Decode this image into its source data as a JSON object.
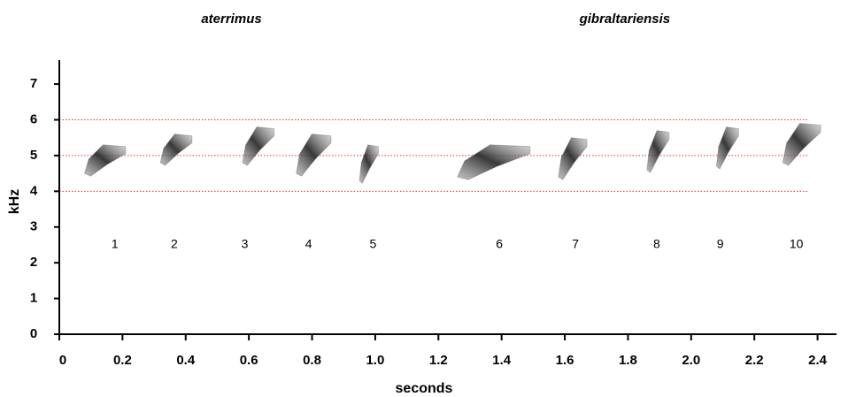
{
  "chart_data": {
    "type": "spectrogram",
    "xlabel": "seconds",
    "ylabel": "kHz",
    "xlim": [
      0,
      2.46
    ],
    "ylim": [
      0,
      7.67
    ],
    "xticks": [
      0,
      0.2,
      0.4,
      0.6,
      0.8,
      {
        "value": 1.0,
        "label": "1.0"
      },
      1.2,
      1.4,
      1.6,
      1.8,
      {
        "value": 2.0,
        "label": "2.0"
      },
      2.2,
      2.4
    ],
    "yticks": [
      0,
      1,
      2,
      3,
      4,
      5,
      6,
      7
    ],
    "reference_lines": {
      "values": [
        4,
        5,
        6
      ],
      "color": "#e03030",
      "x_end": 2.37
    },
    "groups": [
      {
        "label": "aterrimus",
        "x": 0.545
      },
      {
        "label": "gibraltariensis",
        "x": 1.79
      }
    ],
    "syllable_label_y": 2.5,
    "color": "#333333",
    "syllables": [
      {
        "label": "1",
        "label_x": 0.176,
        "start": 0.08,
        "end": 0.21,
        "low": 4.5,
        "high": 5.3
      },
      {
        "label": "2",
        "label_x": 0.364,
        "start": 0.32,
        "end": 0.42,
        "low": 4.8,
        "high": 5.6
      },
      {
        "label": "3",
        "label_x": 0.587,
        "start": 0.58,
        "end": 0.68,
        "low": 4.8,
        "high": 5.8
      },
      {
        "label": "4",
        "label_x": 0.789,
        "start": 0.75,
        "end": 0.86,
        "low": 4.5,
        "high": 5.6
      },
      {
        "label": "5",
        "label_x": 0.993,
        "start": 0.95,
        "end": 1.01,
        "low": 4.3,
        "high": 5.3
      },
      {
        "label": "6",
        "label_x": 1.393,
        "start": 1.26,
        "end": 1.49,
        "low": 4.4,
        "high": 5.3
      },
      {
        "label": "7",
        "label_x": 1.634,
        "start": 1.58,
        "end": 1.67,
        "low": 4.4,
        "high": 5.5
      },
      {
        "label": "8",
        "label_x": 1.891,
        "start": 1.86,
        "end": 1.93,
        "low": 4.6,
        "high": 5.7
      },
      {
        "label": "9",
        "label_x": 2.092,
        "start": 2.08,
        "end": 2.15,
        "low": 4.7,
        "high": 5.8
      },
      {
        "label": "10",
        "label_x": 2.333,
        "start": 2.29,
        "end": 2.41,
        "low": 4.8,
        "high": 5.9
      }
    ]
  }
}
